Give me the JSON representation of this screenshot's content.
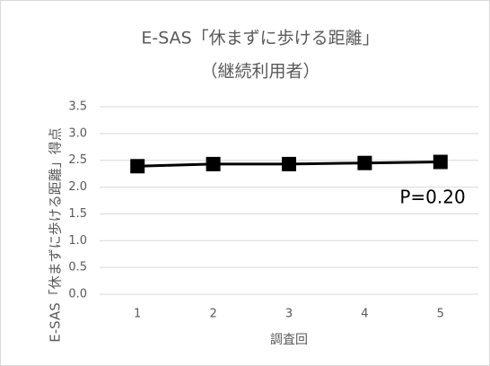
{
  "chart_data": {
    "type": "line",
    "title": "E-SAS「休まずに歩ける距離」",
    "subtitle": "（継続利用者）",
    "x_label": "調査回",
    "y_label": "E-SAS「休まずに歩ける距離」得点",
    "annotation": "P=0.20",
    "categories": [
      "1",
      "2",
      "3",
      "4",
      "5"
    ],
    "values": [
      2.39,
      2.43,
      2.43,
      2.45,
      2.47
    ],
    "color": "#000000",
    "ylim": [
      0,
      3.5
    ],
    "yticks": [
      {
        "value": 0,
        "label": "0.0"
      },
      0.5,
      {
        "value": 1,
        "label": "1.0"
      },
      1.5,
      {
        "value": 2,
        "label": "2.0"
      },
      2.5,
      {
        "value": 3,
        "label": "3.0"
      },
      3.5
    ],
    "grid": true
  }
}
